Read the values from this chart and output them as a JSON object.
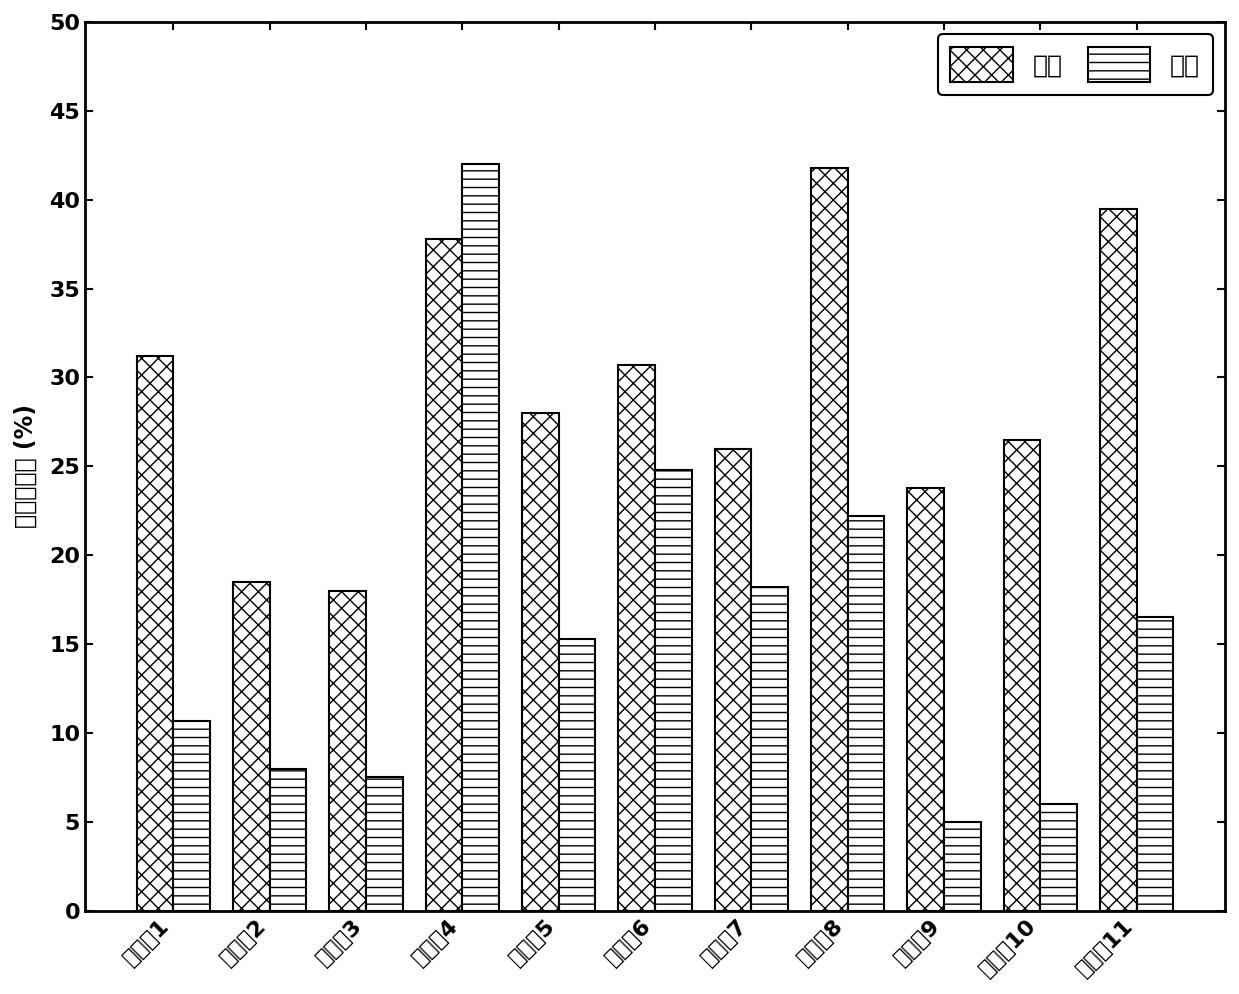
{
  "categories": [
    "应用例1",
    "应用例2",
    "应用例3",
    "应用例4",
    "应用例5",
    "应用例6",
    "应用例7",
    "应用例8",
    "应用例9",
    "应用例10",
    "应用例11"
  ],
  "methane": [
    31.2,
    18.5,
    18.0,
    37.8,
    28.0,
    30.7,
    26.0,
    41.8,
    23.8,
    26.5,
    39.5
  ],
  "ethylene": [
    10.7,
    8.0,
    7.5,
    42.0,
    15.3,
    24.8,
    18.2,
    22.2,
    5.0,
    6.0,
    16.5
  ],
  "ylabel": "法拉第效率 (%)",
  "ylim": [
    0,
    50
  ],
  "yticks": [
    0,
    5,
    10,
    15,
    20,
    25,
    30,
    35,
    40,
    45,
    50
  ],
  "legend_labels": [
    "甲烷",
    "乙烯"
  ],
  "bar_width": 0.38,
  "methane_hatch": "xx",
  "ethylene_hatch": "--",
  "bar_color": "white",
  "edge_color": "black",
  "background_color": "white",
  "title_fontsize": 16,
  "tick_fontsize": 16,
  "ylabel_fontsize": 17,
  "legend_fontsize": 18
}
